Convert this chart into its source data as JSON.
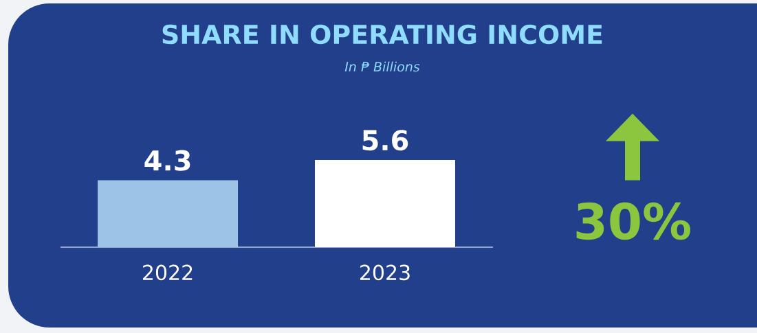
{
  "chart_data": {
    "type": "bar",
    "title": "SHARE IN OPERATING INCOME",
    "subtitle": "In ₱ Billions",
    "categories": [
      "2022",
      "2023"
    ],
    "values": [
      4.3,
      5.6
    ],
    "colors": [
      "#9dc3e6",
      "#ffffff"
    ],
    "data_labels": true,
    "annotations": [
      "30%"
    ]
  }
}
